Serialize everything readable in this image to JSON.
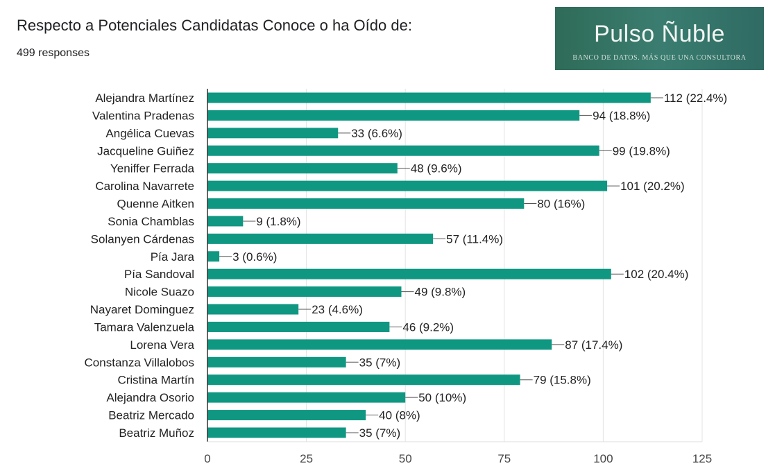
{
  "header": {
    "title": "Respecto a Potenciales Candidatas Conoce o ha Oído de:",
    "responses": "499 responses"
  },
  "logo": {
    "name": "Pulso Ñuble",
    "tagline": "BANCO DE DATOS. MÁS QUE UNA CONSULTORA"
  },
  "colors": {
    "bar": "#0f9782",
    "grid": "#e3e3e3",
    "axis": "#333333",
    "leader": "#555555"
  },
  "chart_data": {
    "type": "bar",
    "orientation": "horizontal",
    "title": "Respecto a Potenciales Candidatas Conoce o ha Oído de:",
    "categories": [
      "Alejandra Martínez",
      "Valentina Pradenas",
      "Angélica Cuevas",
      "Jacqueline Guiñez",
      "Yeniffer Ferrada",
      "Carolina Navarrete",
      "Quenne Aitken",
      "Sonia Chamblas",
      "Solanyen Cárdenas",
      "Pía Jara",
      "Pía Sandoval",
      "Nicole Suazo",
      "Nayaret Dominguez",
      "Tamara Valenzuela",
      "Lorena Vera",
      "Constanza Villalobos",
      "Cristina Martín",
      "Alejandra Osorio",
      "Beatriz Mercado",
      "Beatriz Muñoz"
    ],
    "values": [
      112,
      94,
      33,
      99,
      48,
      101,
      80,
      9,
      57,
      3,
      102,
      49,
      23,
      46,
      87,
      35,
      79,
      50,
      40,
      35
    ],
    "labels": [
      "112 (22.4%)",
      "94 (18.8%)",
      "33 (6.6%)",
      "99 (19.8%)",
      "48 (9.6%)",
      "101 (20.2%)",
      "80 (16%)",
      "9 (1.8%)",
      "57 (11.4%)",
      "3 (0.6%)",
      "102 (20.4%)",
      "49 (9.8%)",
      "23 (4.6%)",
      "46 (9.2%)",
      "87 (17.4%)",
      "35 (7%)",
      "79 (15.8%)",
      "50 (10%)",
      "40 (8%)",
      "35 (7%)"
    ],
    "xlim": [
      0,
      125
    ],
    "xticks": [
      0,
      25,
      50,
      75,
      100,
      125
    ],
    "xtick_labels": [
      "0",
      "25",
      "50",
      "75",
      "100",
      "125"
    ],
    "grid": true,
    "xlabel": "",
    "ylabel": ""
  }
}
